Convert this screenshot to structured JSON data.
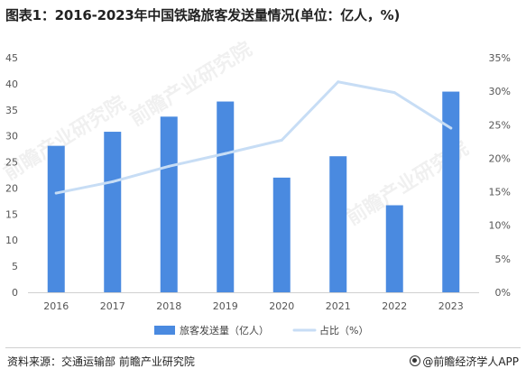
{
  "title": "图表1：2016-2023年中国铁路旅客发送量情况(单位：亿人，%)",
  "source": "资料来源：交通运输部 前瞻产业研究院",
  "brand": "@前瞻经济学人APP",
  "watermark": "前瞻产业研究院",
  "colors": {
    "bar": "#4a8ae0",
    "line": "#c7ddf5",
    "axis_text": "#555555",
    "grid": "#e6e6e6"
  },
  "chart_data": {
    "type": "bar",
    "categories": [
      "2016",
      "2017",
      "2018",
      "2019",
      "2020",
      "2021",
      "2022",
      "2023"
    ],
    "series": [
      {
        "name": "旅客发送量（亿人）",
        "type": "bar",
        "axis": "left",
        "values": [
          28.1,
          30.8,
          33.7,
          36.6,
          22.0,
          26.1,
          16.7,
          38.5
        ]
      },
      {
        "name": "占比（%）",
        "type": "line",
        "axis": "right",
        "values": [
          14.8,
          16.5,
          18.8,
          20.7,
          22.7,
          31.4,
          29.8,
          24.5
        ]
      }
    ],
    "y_left": {
      "lim": [
        0,
        45
      ],
      "ticks": [
        "0",
        "5",
        "10",
        "15",
        "20",
        "25",
        "30",
        "35",
        "40",
        "45"
      ]
    },
    "y_right": {
      "lim": [
        0,
        35
      ],
      "ticks": [
        "0%",
        "5%",
        "10%",
        "15%",
        "20%",
        "25%",
        "30%",
        "35%"
      ]
    },
    "grid": false,
    "legend": "bottom-center"
  }
}
